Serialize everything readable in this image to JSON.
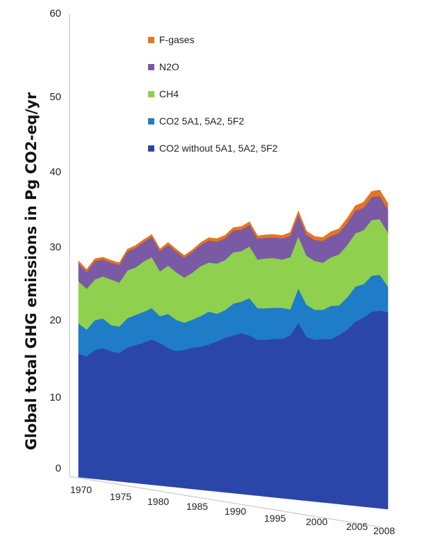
{
  "chart_data": {
    "type": "area",
    "stacked": true,
    "title": "",
    "xlabel": "",
    "ylabel": "Global total GHG emissions in Pg CO2-eq/yr",
    "xlim": [
      1970,
      2008
    ],
    "ylim": [
      0,
      60
    ],
    "y_ticks": [
      "0",
      "10",
      "20",
      "30",
      "40",
      "50",
      "60"
    ],
    "x_ticks": [
      "1970",
      "1975",
      "1980",
      "1985",
      "1990",
      "1995",
      "2000",
      "2005",
      "2008"
    ],
    "grid": false,
    "legend_position": "top-left",
    "x": [
      1970,
      1971,
      1972,
      1973,
      1974,
      1975,
      1976,
      1977,
      1978,
      1979,
      1980,
      1981,
      1982,
      1983,
      1984,
      1985,
      1986,
      1987,
      1988,
      1989,
      1990,
      1991,
      1992,
      1993,
      1994,
      1995,
      1996,
      1997,
      1998,
      1999,
      2000,
      2001,
      2002,
      2003,
      2004,
      2005,
      2006,
      2007,
      2008
    ],
    "series": [
      {
        "name": "CO2 without 5A1, 5A2, 5F2",
        "color": "#2a46a8",
        "values": [
          16.0,
          15.8,
          16.8,
          17.2,
          17.0,
          16.9,
          17.8,
          18.3,
          18.8,
          19.4,
          19.1,
          18.6,
          18.4,
          18.7,
          19.2,
          19.5,
          20.0,
          20.6,
          21.3,
          21.8,
          22.3,
          22.2,
          21.8,
          22.0,
          22.3,
          22.5,
          23.2,
          25.2,
          23.4,
          23.2,
          23.5,
          23.7,
          24.5,
          25.5,
          26.9,
          27.7,
          28.8,
          29.2,
          29.2
        ]
      },
      {
        "name": "CO2 5A1, 5A2, 5F2",
        "color": "#1f7cc6",
        "values": [
          3.9,
          3.5,
          3.9,
          3.9,
          3.4,
          3.5,
          3.9,
          4.0,
          4.1,
          4.2,
          3.6,
          4.6,
          4.2,
          3.7,
          3.8,
          4.2,
          4.5,
          3.8,
          3.8,
          4.4,
          4.4,
          5.2,
          4.4,
          4.4,
          4.4,
          4.4,
          3.7,
          4.9,
          4.6,
          4.3,
          4.2,
          4.8,
          4.3,
          4.7,
          5.1,
          4.9,
          5.3,
          5.3,
          3.8
        ]
      },
      {
        "name": "CH4",
        "color": "#8fd04f",
        "values": [
          5.5,
          5.3,
          5.3,
          5.5,
          6.0,
          5.8,
          6.3,
          6.3,
          6.7,
          6.8,
          6.0,
          6.5,
          6.4,
          6.1,
          6.4,
          6.8,
          6.7,
          6.9,
          6.9,
          7.1,
          7.0,
          7.2,
          6.8,
          7.0,
          7.0,
          6.8,
          7.4,
          7.4,
          7.0,
          7.0,
          6.8,
          7.0,
          7.4,
          7.6,
          7.8,
          7.9,
          8.2,
          8.2,
          8.0
        ]
      },
      {
        "name": "N2O",
        "color": "#7a5aa5",
        "values": [
          2.3,
          2.2,
          2.4,
          2.2,
          2.2,
          2.3,
          2.5,
          2.6,
          2.6,
          2.7,
          2.7,
          2.8,
          2.8,
          2.7,
          2.8,
          2.9,
          3.0,
          3.0,
          3.0,
          3.0,
          3.0,
          3.0,
          2.9,
          2.9,
          2.9,
          3.0,
          3.0,
          3.1,
          3.0,
          3.0,
          3.1,
          3.1,
          3.1,
          3.2,
          3.3,
          3.3,
          3.4,
          3.4,
          3.4
        ]
      },
      {
        "name": "F-gases",
        "color": "#e8741c",
        "values": [
          0.3,
          0.3,
          0.3,
          0.3,
          0.3,
          0.3,
          0.3,
          0.3,
          0.3,
          0.3,
          0.3,
          0.3,
          0.3,
          0.3,
          0.3,
          0.3,
          0.4,
          0.4,
          0.4,
          0.4,
          0.4,
          0.4,
          0.4,
          0.4,
          0.4,
          0.4,
          0.5,
          0.5,
          0.5,
          0.5,
          0.5,
          0.6,
          0.6,
          0.7,
          0.7,
          0.8,
          0.8,
          0.9,
          0.9
        ]
      }
    ]
  }
}
